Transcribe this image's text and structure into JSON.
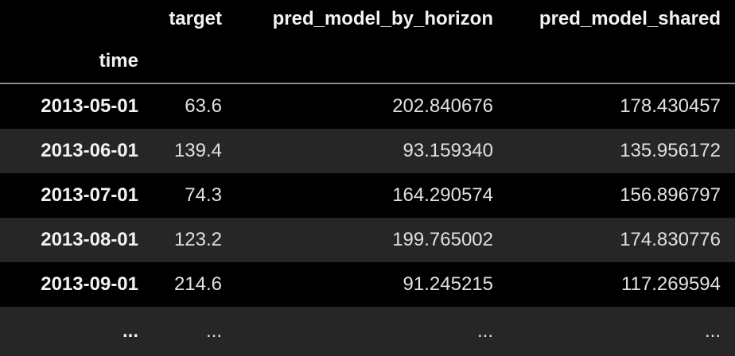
{
  "table": {
    "index_name": "time",
    "columns": [
      "target",
      "pred_model_by_horizon",
      "pred_model_shared"
    ],
    "rows": [
      {
        "index": "2013-05-01",
        "target": "63.6",
        "pred_model_by_horizon": "202.840676",
        "pred_model_shared": "178.430457"
      },
      {
        "index": "2013-06-01",
        "target": "139.4",
        "pred_model_by_horizon": "93.159340",
        "pred_model_shared": "135.956172"
      },
      {
        "index": "2013-07-01",
        "target": "74.3",
        "pred_model_by_horizon": "164.290574",
        "pred_model_shared": "156.896797"
      },
      {
        "index": "2013-08-01",
        "target": "123.2",
        "pred_model_by_horizon": "199.765002",
        "pred_model_shared": "174.830776"
      },
      {
        "index": "2013-09-01",
        "target": "214.6",
        "pred_model_by_horizon": "91.245215",
        "pred_model_shared": "117.269594"
      },
      {
        "index": "...",
        "target": "...",
        "pred_model_by_horizon": "...",
        "pred_model_shared": "..."
      }
    ]
  },
  "colors": {
    "background": "#000000",
    "striped_row": "#262626",
    "text": "#e6e6e6",
    "header_rule": "#8a8a8a"
  }
}
